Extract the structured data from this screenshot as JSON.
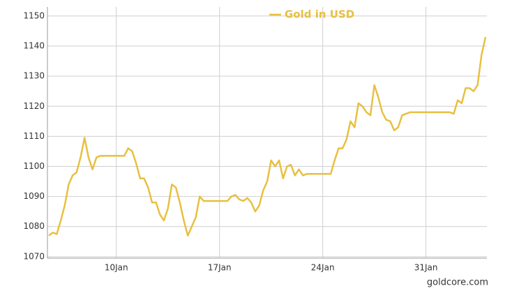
{
  "chart_data": {
    "type": "line",
    "source": "goldcore.com",
    "categories": [
      null,
      null,
      null,
      null,
      null,
      null,
      null,
      null,
      null,
      null,
      null,
      null,
      null,
      null,
      null,
      null,
      null,
      "10Jan",
      null,
      null,
      null,
      null,
      null,
      null,
      null,
      null,
      null,
      null,
      null,
      null,
      null,
      null,
      null,
      null,
      null,
      null,
      null,
      null,
      null,
      null,
      null,
      null,
      null,
      "17Jan",
      null,
      null,
      null,
      null,
      null,
      null,
      null,
      null,
      null,
      null,
      null,
      null,
      null,
      null,
      null,
      null,
      null,
      null,
      null,
      null,
      null,
      null,
      null,
      null,
      null,
      "24Jan",
      null,
      null,
      null,
      null,
      null,
      null,
      null,
      null,
      null,
      null,
      null,
      null,
      null,
      null,
      null,
      null,
      null,
      null,
      null,
      null,
      null,
      null,
      null,
      null,
      null,
      "31Jan",
      null,
      null,
      null,
      null,
      null,
      null,
      null,
      null,
      null,
      null,
      null,
      null,
      null,
      null,
      null
    ],
    "series": [
      {
        "name": "Gold in USD",
        "color": "#e8c040",
        "values": [
          1077,
          1078,
          1077.5,
          1082,
          1087,
          1094,
          1097,
          1098,
          1103,
          1109.5,
          1103,
          1099,
          1103,
          1103.5,
          1103.5,
          1103.5,
          1103.5,
          1103.5,
          1103.5,
          1103.5,
          1106,
          1105,
          1101,
          1096,
          1096,
          1093,
          1088,
          1088,
          1084,
          1082,
          1086,
          1094,
          1093,
          1088,
          1082,
          1077,
          1080,
          1083,
          1090,
          1088.5,
          1088.5,
          1088.5,
          1088.5,
          1088.5,
          1088.5,
          1088.5,
          1090,
          1090.5,
          1089,
          1088.5,
          1089.5,
          1088,
          1085,
          1087,
          1092,
          1095,
          1102,
          1100,
          1102,
          1096,
          1100,
          1100.5,
          1097,
          1099,
          1097,
          1097.5,
          1097.5,
          1097.5,
          1097.5,
          1097.5,
          1097.5,
          1097.5,
          1102,
          1106,
          1106,
          1109,
          1115,
          1113,
          1121,
          1120,
          1118,
          1117,
          1127,
          1123,
          1118,
          1115.5,
          1115,
          1112,
          1113,
          1117,
          1117.5,
          1118,
          1118,
          1118,
          1118,
          1118,
          1118,
          1118,
          1118,
          1118,
          1118,
          1118,
          1117.5,
          1122,
          1121,
          1126,
          1126,
          1125,
          1127,
          1137,
          1143
        ]
      }
    ],
    "ylim": [
      1069.5,
      1153
    ],
    "yticks": [
      1070,
      1080,
      1090,
      1100,
      1110,
      1120,
      1130,
      1140,
      1150
    ],
    "grid": true,
    "legend": "top"
  }
}
